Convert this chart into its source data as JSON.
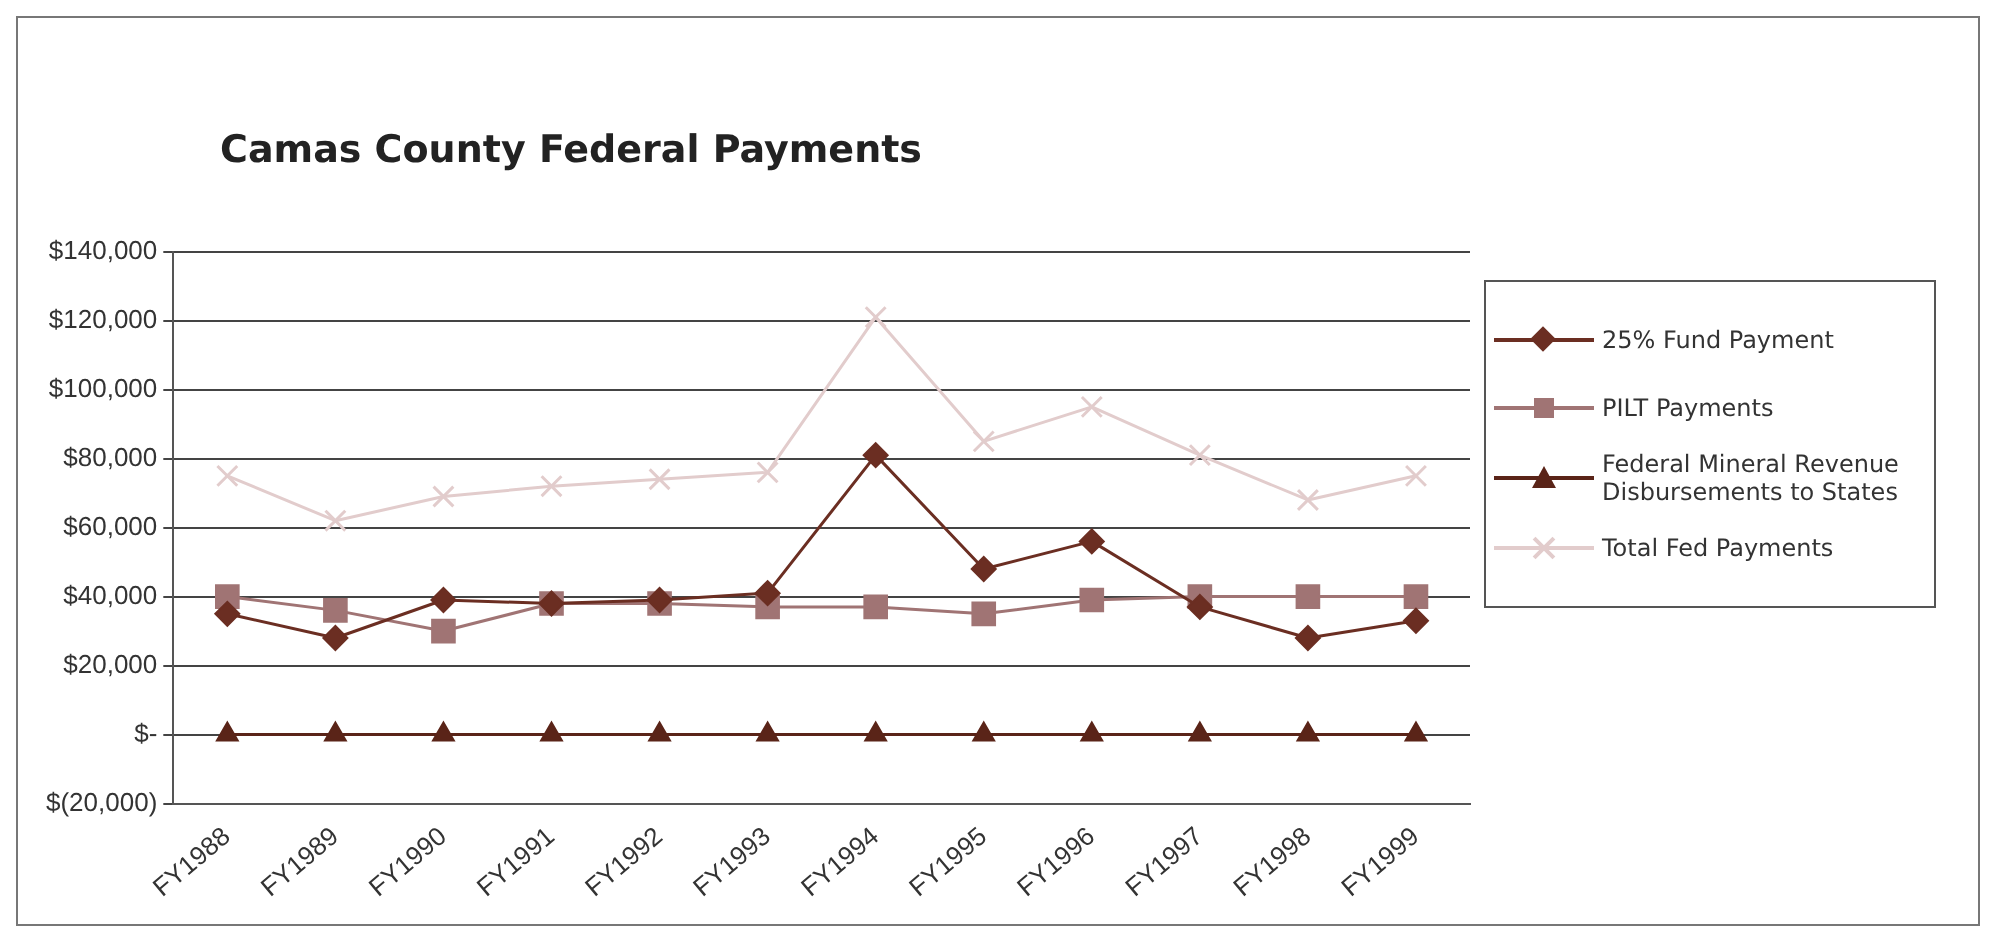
{
  "chart_data": {
    "type": "line",
    "title": "Camas County Federal Payments",
    "categories": [
      "FY1988",
      "FY1989",
      "FY1990",
      "FY1991",
      "FY1992",
      "FY1993",
      "FY1994",
      "FY1995",
      "FY1996",
      "FY1997",
      "FY1998",
      "FY1999"
    ],
    "series": [
      {
        "name": "25% Fund Payment",
        "color": "#6b2e22",
        "marker": "diamond",
        "values": [
          35000,
          28000,
          39000,
          38000,
          39000,
          41000,
          81000,
          48000,
          56000,
          37000,
          28000,
          33000
        ]
      },
      {
        "name": "PILT Payments",
        "color": "#a07474",
        "marker": "square",
        "values": [
          40000,
          36000,
          30000,
          38000,
          38000,
          37000,
          37000,
          35000,
          39000,
          40000,
          40000,
          40000
        ]
      },
      {
        "name": "Federal Mineral Revenue Disbursements to States",
        "color": "#5a2418",
        "marker": "triangle",
        "values": [
          0,
          0,
          0,
          0,
          0,
          0,
          0,
          0,
          0,
          0,
          0,
          0
        ]
      },
      {
        "name": "Total Fed Payments",
        "color": "#e2cccc",
        "marker": "cross",
        "values": [
          75000,
          62000,
          69000,
          72000,
          74000,
          76000,
          121000,
          85000,
          95000,
          81000,
          68000,
          75000
        ]
      }
    ],
    "ylim": [
      -20000,
      140000
    ],
    "yticks": [
      {
        "value": -20000,
        "label": "$(20,000)"
      },
      {
        "value": 0,
        "label": "$-"
      },
      {
        "value": 20000,
        "label": "$20,000"
      },
      {
        "value": 40000,
        "label": "$40,000"
      },
      {
        "value": 60000,
        "label": "$60,000"
      },
      {
        "value": 80000,
        "label": "$80,000"
      },
      {
        "value": 100000,
        "label": "$100,000"
      },
      {
        "value": 120000,
        "label": "$120,000"
      },
      {
        "value": 140000,
        "label": "$140,000"
      }
    ],
    "grid": "y",
    "legend": "right"
  }
}
